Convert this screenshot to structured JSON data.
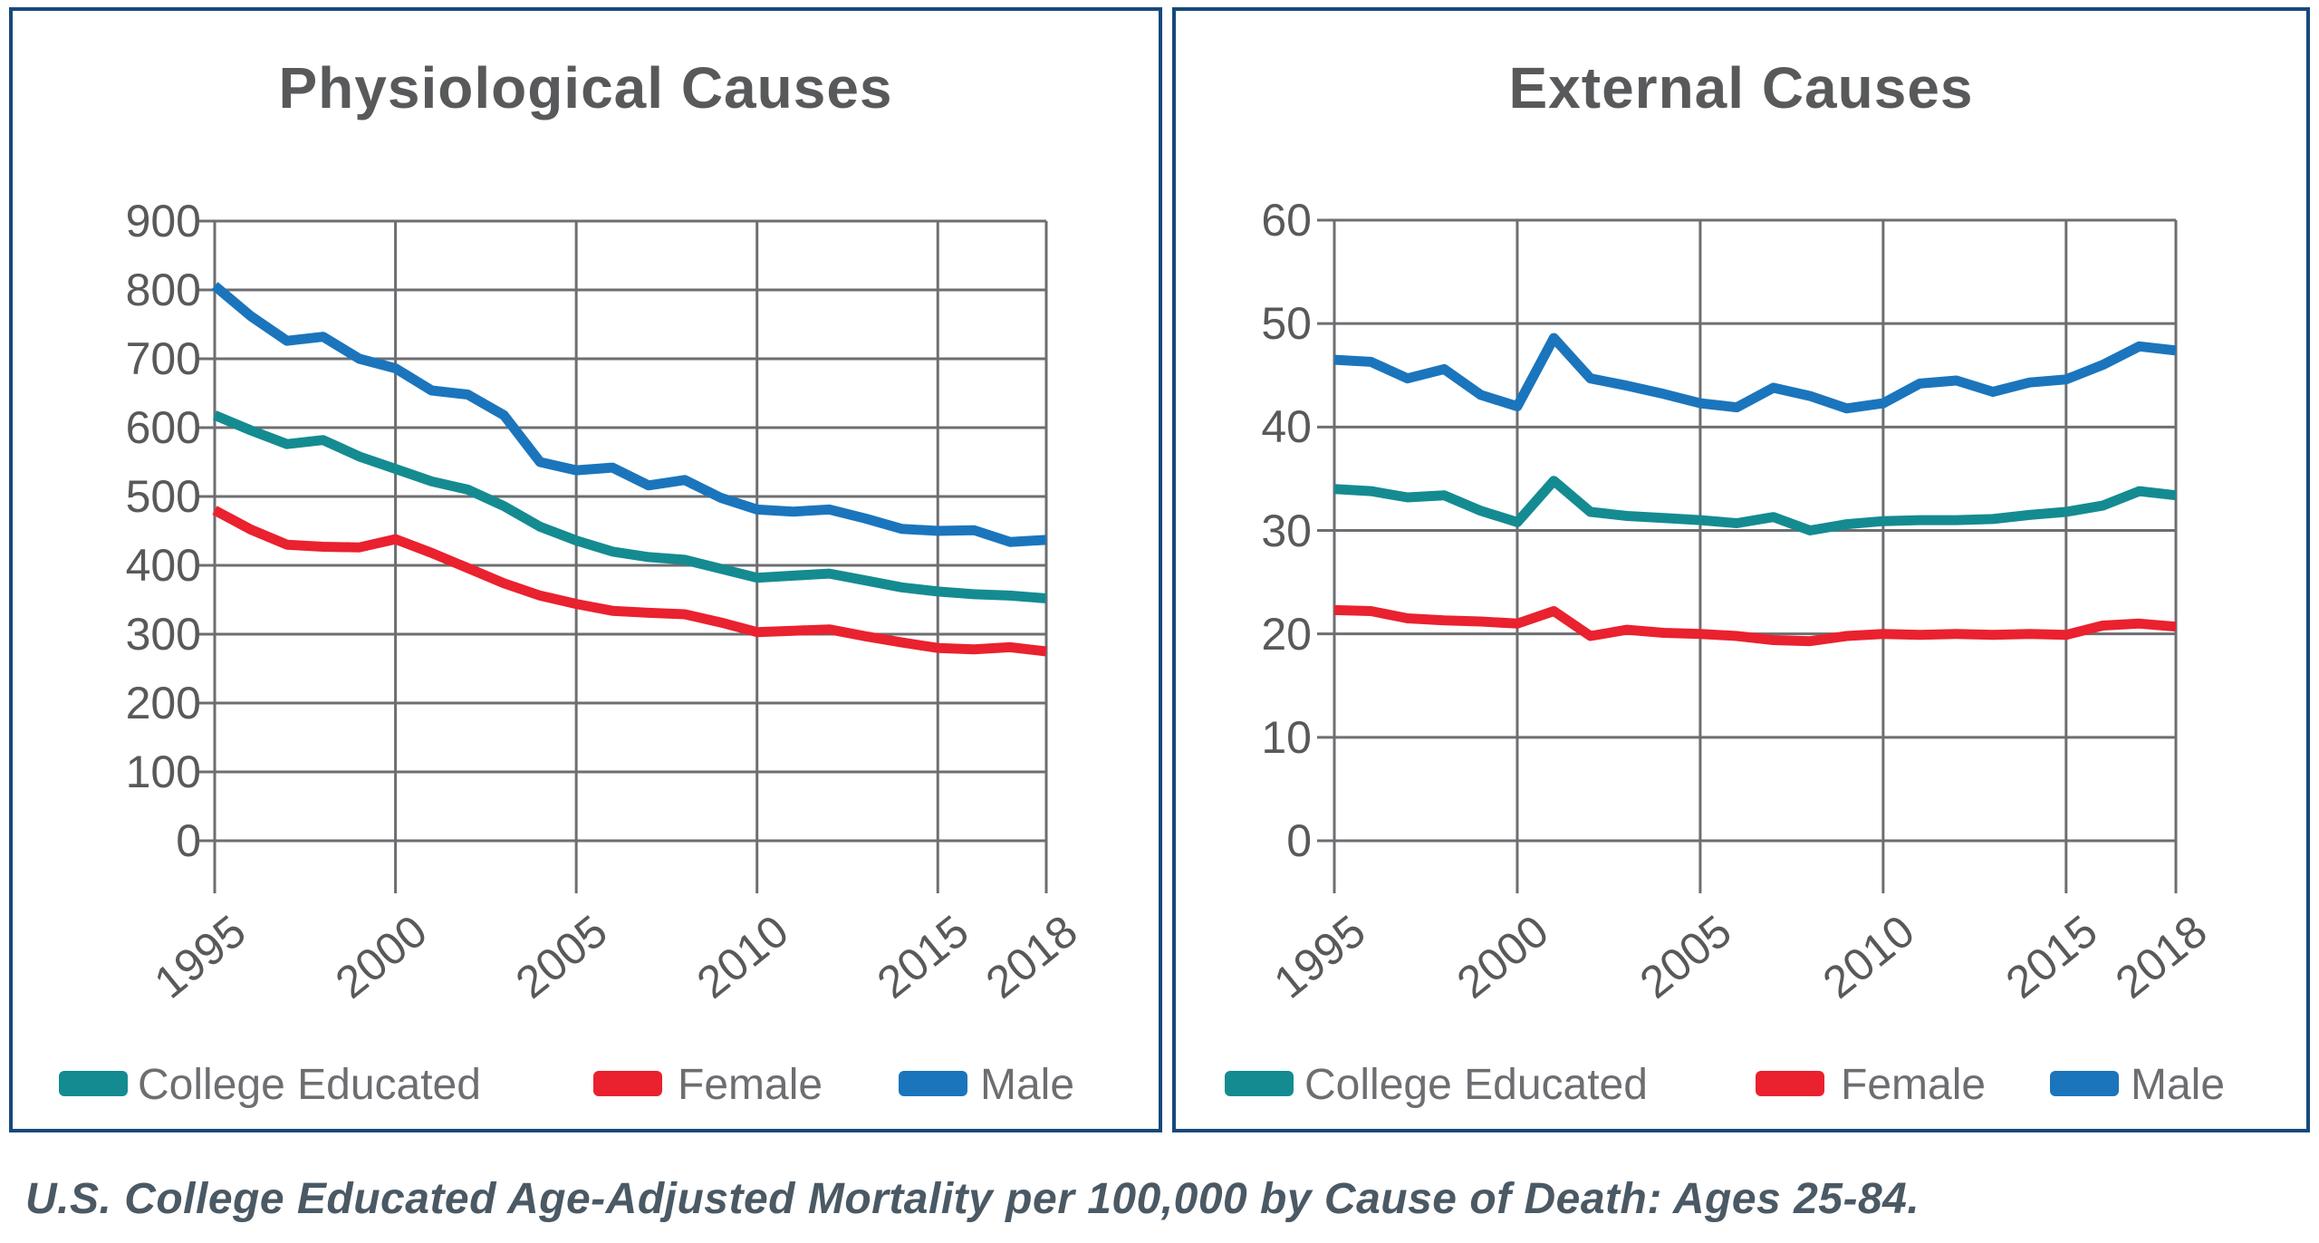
{
  "caption": "U.S. College Educated Age-Adjusted Mortality per 100,000 by Cause of Death: Ages 25-84.",
  "colors": {
    "college": "#148B91",
    "female": "#EA212E",
    "male": "#1B75BC",
    "gridline": "#6D6E71",
    "axis_text": "#58595B",
    "title_text": "#58595B",
    "legend_text": "#6D6E71",
    "panel_border": "#17497B",
    "caption_text": "#4A5964"
  },
  "legend": [
    {
      "label": "College Educated",
      "color_key": "college"
    },
    {
      "label": "Female",
      "color_key": "female"
    },
    {
      "label": "Male",
      "color_key": "male"
    }
  ],
  "chart_data": [
    {
      "id": "physiological",
      "type": "line",
      "title": "Physiological Causes",
      "xlabel": "",
      "ylabel": "",
      "ylim": [
        0,
        900
      ],
      "y_ticks": [
        0,
        100,
        200,
        300,
        400,
        500,
        600,
        700,
        800,
        900
      ],
      "x_ticks": [
        1995,
        2000,
        2005,
        2010,
        2015,
        2018
      ],
      "grid": true,
      "legend_position": "bottom",
      "x": [
        1995,
        1996,
        1997,
        1998,
        1999,
        2000,
        2001,
        2002,
        2003,
        2004,
        2005,
        2006,
        2007,
        2008,
        2009,
        2010,
        2011,
        2012,
        2013,
        2014,
        2015,
        2016,
        2017,
        2018
      ],
      "series": [
        {
          "name": "College Educated",
          "color": "#148B91",
          "values": [
            618,
            596,
            576,
            582,
            558,
            540,
            522,
            510,
            486,
            456,
            436,
            420,
            412,
            408,
            395,
            382,
            385,
            388,
            378,
            368,
            362,
            358,
            356,
            352
          ]
        },
        {
          "name": "Female",
          "color": "#EA212E",
          "values": [
            480,
            452,
            430,
            427,
            426,
            438,
            418,
            396,
            374,
            356,
            344,
            334,
            331,
            329,
            317,
            303,
            305,
            307,
            297,
            288,
            280,
            278,
            281,
            275
          ]
        },
        {
          "name": "Male",
          "color": "#1B75BC",
          "values": [
            806,
            762,
            726,
            732,
            700,
            686,
            654,
            648,
            618,
            550,
            538,
            542,
            516,
            524,
            498,
            481,
            478,
            481,
            468,
            453,
            450,
            451,
            434,
            437
          ]
        }
      ]
    },
    {
      "id": "external",
      "type": "line",
      "title": "External Causes",
      "xlabel": "",
      "ylabel": "",
      "ylim": [
        0,
        60
      ],
      "y_ticks": [
        0,
        10,
        20,
        30,
        40,
        50,
        60
      ],
      "x_ticks": [
        1995,
        2000,
        2005,
        2010,
        2015,
        2018
      ],
      "grid": true,
      "legend_position": "bottom",
      "x": [
        1995,
        1996,
        1997,
        1998,
        1999,
        2000,
        2001,
        2002,
        2003,
        2004,
        2005,
        2006,
        2007,
        2008,
        2009,
        2010,
        2011,
        2012,
        2013,
        2014,
        2015,
        2016,
        2017,
        2018
      ],
      "series": [
        {
          "name": "College Educated",
          "color": "#148B91",
          "values": [
            34.0,
            33.8,
            33.2,
            33.4,
            31.9,
            30.8,
            34.8,
            31.8,
            31.4,
            31.2,
            31.0,
            30.7,
            31.3,
            30.0,
            30.6,
            30.9,
            31.0,
            31.0,
            31.1,
            31.5,
            31.8,
            32.4,
            33.8,
            33.4
          ]
        },
        {
          "name": "Female",
          "color": "#EA212E",
          "values": [
            22.3,
            22.2,
            21.5,
            21.3,
            21.2,
            21.0,
            22.2,
            19.8,
            20.4,
            20.1,
            20.0,
            19.8,
            19.4,
            19.3,
            19.8,
            20.0,
            19.9,
            20.0,
            19.9,
            20.0,
            19.9,
            20.8,
            21.0,
            20.7
          ]
        },
        {
          "name": "Male",
          "color": "#1B75BC",
          "values": [
            46.5,
            46.3,
            44.7,
            45.6,
            43.1,
            42.0,
            48.6,
            44.7,
            44.0,
            43.2,
            42.3,
            41.9,
            43.8,
            43.0,
            41.8,
            42.3,
            44.2,
            44.5,
            43.4,
            44.3,
            44.6,
            46.0,
            47.8,
            47.4
          ]
        }
      ]
    }
  ]
}
